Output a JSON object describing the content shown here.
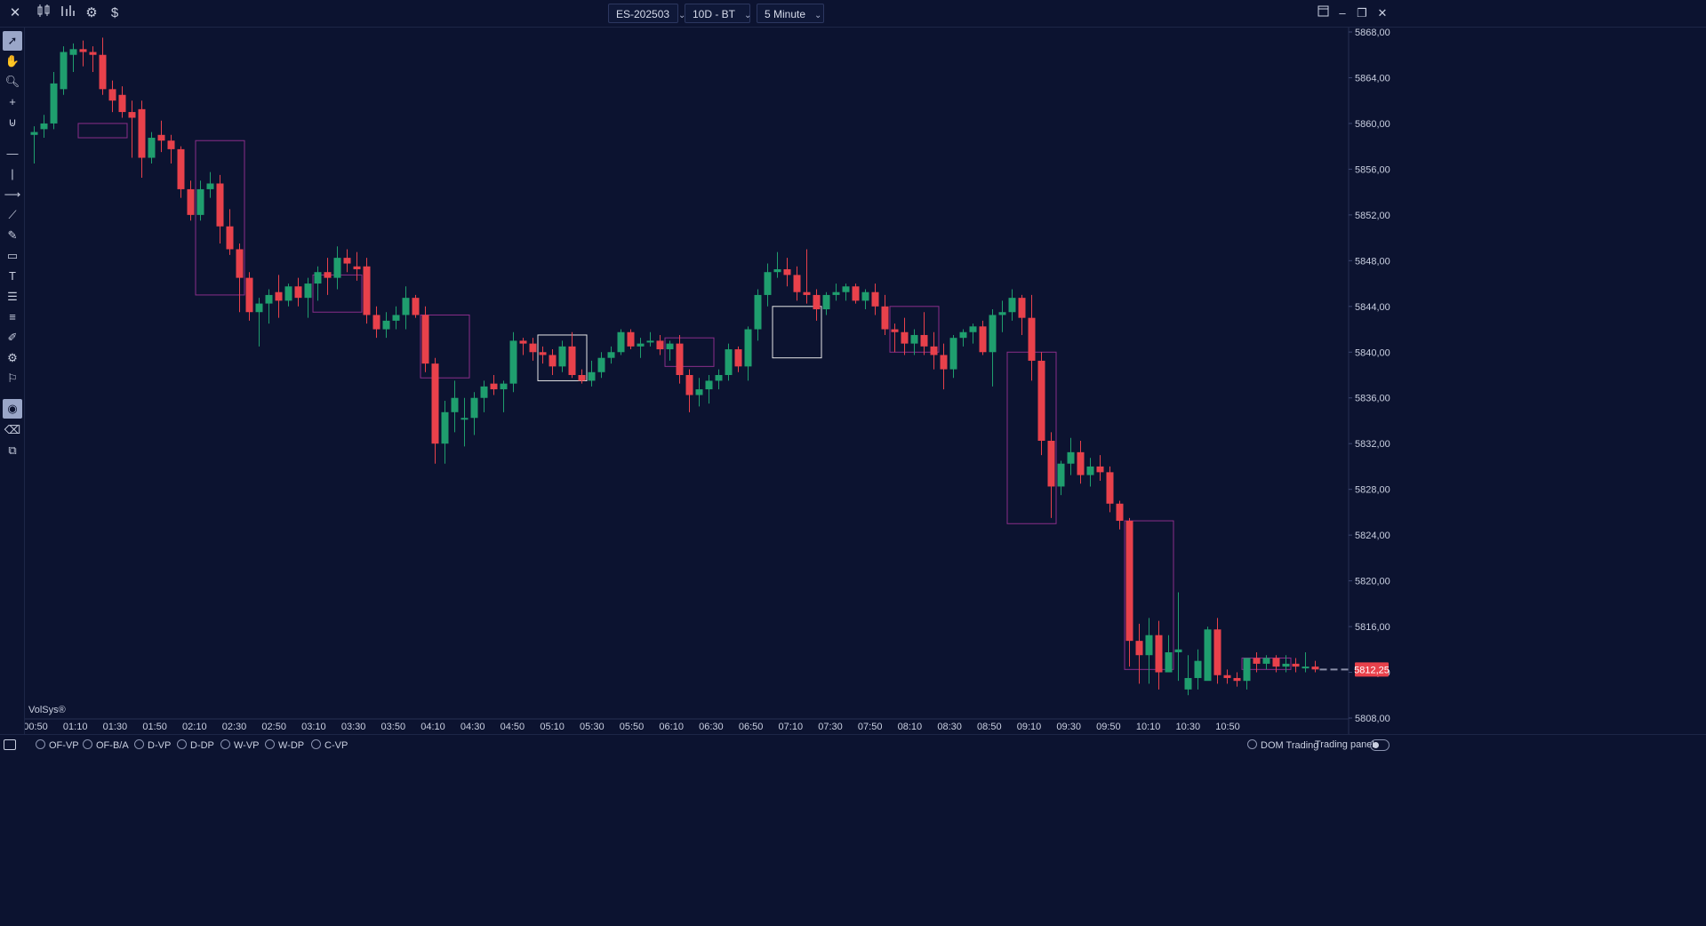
{
  "toolbar": {
    "symbol": "ES-202503",
    "range": "10D - BT",
    "interval": "5 Minute",
    "icons": [
      "close-icon",
      "candlestick-icon",
      "bar-chart-icon",
      "gear-icon",
      "dollar-icon"
    ]
  },
  "window_controls": [
    "layout-icon",
    "minimize-icon",
    "restore-icon",
    "close-icon"
  ],
  "left_tools": [
    "cursor-icon",
    "hand-icon",
    "zoom-icon",
    "crosshair-icon",
    "magnet-icon",
    "horizontal-line-icon",
    "vertical-line-icon",
    "ray-icon",
    "trend-line-icon",
    "ruler-icon",
    "rectangle-icon",
    "text-icon",
    "fib-icon",
    "list-icon",
    "pencil-icon",
    "settings-icon",
    "alert-icon",
    "eye-icon",
    "eraser-icon",
    "layers-icon"
  ],
  "watermark": "VolSys®",
  "bottom_bar": {
    "studies": [
      "OF-VP",
      "OF-B/A",
      "D-VP",
      "D-DP",
      "W-VP",
      "W-DP",
      "C-VP"
    ],
    "dom_trading": "DOM Trading",
    "trading_panel": "Trading panel"
  },
  "colors": {
    "background": "#0c1330",
    "up": "#1f9e6e",
    "down": "#e8414b",
    "box_magenta": "#8a2e8a",
    "box_white": "#e6e6e6",
    "price_tag": "#e8414b"
  },
  "chart_data": {
    "type": "candlestick",
    "symbol": "ES-202503",
    "interval": "5 Minute",
    "ylim": [
      5808,
      5868
    ],
    "y_ticks": [
      "5868,00",
      "5864,00",
      "5860,00",
      "5856,00",
      "5852,00",
      "5848,00",
      "5844,00",
      "5840,00",
      "5836,00",
      "5832,00",
      "5828,00",
      "5824,00",
      "5820,00",
      "5816,00",
      "5812,00",
      "5808,00"
    ],
    "x_ticks": [
      "00:50",
      "01:10",
      "01:30",
      "01:50",
      "02:10",
      "02:30",
      "02:50",
      "03:10",
      "03:30",
      "03:50",
      "04:10",
      "04:30",
      "04:50",
      "05:10",
      "05:30",
      "05:50",
      "06:10",
      "06:30",
      "06:50",
      "07:10",
      "07:30",
      "07:50",
      "08:10",
      "08:30",
      "08:50",
      "09:10",
      "09:30",
      "09:50",
      "10:10",
      "10:30",
      "10:50"
    ],
    "last_price": 5812.25,
    "last_price_label": "5812,25",
    "candles": [
      [
        5859.0,
        5859.75,
        5856.5,
        5859.25
      ],
      [
        5859.5,
        5860.75,
        5858.75,
        5860.0
      ],
      [
        5860.0,
        5864.5,
        5859.5,
        5863.5
      ],
      [
        5863.0,
        5866.75,
        5862.5,
        5866.25
      ],
      [
        5866.0,
        5867.0,
        5864.5,
        5866.5
      ],
      [
        5866.5,
        5867.25,
        5865.0,
        5866.25
      ],
      [
        5866.25,
        5866.75,
        5864.5,
        5866.0
      ],
      [
        5866.0,
        5867.5,
        5862.5,
        5863.0
      ],
      [
        5863.0,
        5863.75,
        5861.0,
        5862.0
      ],
      [
        5862.5,
        5863.25,
        5860.5,
        5861.0
      ],
      [
        5861.0,
        5862.0,
        5857.0,
        5860.5
      ],
      [
        5861.25,
        5862.0,
        5855.25,
        5857.0
      ],
      [
        5857.0,
        5859.25,
        5856.5,
        5858.75
      ],
      [
        5859.0,
        5860.25,
        5857.5,
        5858.5
      ],
      [
        5858.5,
        5859.0,
        5856.5,
        5857.75
      ],
      [
        5857.75,
        5858.0,
        5853.5,
        5854.25
      ],
      [
        5854.25,
        5855.0,
        5851.5,
        5852.0
      ],
      [
        5852.0,
        5855.0,
        5851.5,
        5854.25
      ],
      [
        5854.25,
        5855.75,
        5853.5,
        5854.75
      ],
      [
        5854.75,
        5855.5,
        5849.5,
        5851.0
      ],
      [
        5851.0,
        5852.5,
        5848.5,
        5849.0
      ],
      [
        5849.0,
        5849.5,
        5843.5,
        5846.5
      ],
      [
        5846.5,
        5847.0,
        5842.75,
        5843.5
      ],
      [
        5843.5,
        5844.75,
        5840.5,
        5844.25
      ],
      [
        5844.25,
        5845.5,
        5842.5,
        5845.0
      ],
      [
        5845.25,
        5846.75,
        5843.0,
        5844.5
      ],
      [
        5844.5,
        5846.0,
        5844.0,
        5845.75
      ],
      [
        5845.75,
        5846.5,
        5844.0,
        5844.75
      ],
      [
        5844.75,
        5846.5,
        5843.0,
        5846.0
      ],
      [
        5846.0,
        5847.5,
        5844.5,
        5847.0
      ],
      [
        5847.0,
        5848.25,
        5845.0,
        5846.5
      ],
      [
        5846.5,
        5849.25,
        5845.5,
        5848.25
      ],
      [
        5848.25,
        5849.0,
        5847.0,
        5847.75
      ],
      [
        5847.5,
        5848.75,
        5846.25,
        5847.25
      ],
      [
        5847.5,
        5848.25,
        5842.5,
        5843.25
      ],
      [
        5843.25,
        5844.0,
        5841.25,
        5842.0
      ],
      [
        5842.0,
        5843.5,
        5841.25,
        5842.75
      ],
      [
        5842.75,
        5844.0,
        5842.0,
        5843.25
      ],
      [
        5843.25,
        5845.75,
        5842.0,
        5844.75
      ],
      [
        5844.75,
        5845.0,
        5843.0,
        5843.25
      ],
      [
        5843.25,
        5844.0,
        5838.25,
        5839.0
      ],
      [
        5839.0,
        5839.5,
        5830.25,
        5832.0
      ],
      [
        5832.0,
        5835.75,
        5830.25,
        5834.75
      ],
      [
        5834.75,
        5837.5,
        5833.0,
        5836.0
      ],
      [
        5834.25,
        5836.0,
        5831.75,
        5834.25
      ],
      [
        5834.25,
        5836.5,
        5832.75,
        5836.0
      ],
      [
        5836.0,
        5837.5,
        5834.75,
        5837.0
      ],
      [
        5837.25,
        5838.0,
        5836.25,
        5836.75
      ],
      [
        5836.75,
        5837.5,
        5834.75,
        5837.25
      ],
      [
        5837.25,
        5841.75,
        5836.5,
        5841.0
      ],
      [
        5841.0,
        5841.25,
        5839.75,
        5840.75
      ],
      [
        5840.75,
        5841.25,
        5839.25,
        5840.0
      ],
      [
        5840.0,
        5840.5,
        5839.0,
        5839.75
      ],
      [
        5839.75,
        5840.25,
        5838.0,
        5838.75
      ],
      [
        5838.75,
        5841.0,
        5838.25,
        5840.5
      ],
      [
        5840.5,
        5841.75,
        5837.75,
        5838.0
      ],
      [
        5838.0,
        5838.5,
        5837.25,
        5837.5
      ],
      [
        5837.5,
        5839.25,
        5837.0,
        5838.25
      ],
      [
        5838.25,
        5840.0,
        5837.75,
        5839.5
      ],
      [
        5839.5,
        5840.5,
        5839.0,
        5840.0
      ],
      [
        5840.0,
        5842.0,
        5839.75,
        5841.75
      ],
      [
        5841.75,
        5842.0,
        5840.25,
        5840.5
      ],
      [
        5840.5,
        5841.25,
        5839.5,
        5840.75
      ],
      [
        5841.0,
        5841.75,
        5840.5,
        5841.0
      ],
      [
        5841.0,
        5841.5,
        5839.75,
        5840.25
      ],
      [
        5840.25,
        5841.0,
        5839.25,
        5840.75
      ],
      [
        5840.75,
        5841.5,
        5837.25,
        5838.0
      ],
      [
        5838.0,
        5838.5,
        5834.75,
        5836.25
      ],
      [
        5836.25,
        5837.75,
        5835.25,
        5836.75
      ],
      [
        5836.75,
        5838.0,
        5835.5,
        5837.5
      ],
      [
        5837.5,
        5838.5,
        5836.75,
        5838.0
      ],
      [
        5838.0,
        5840.75,
        5837.5,
        5840.25
      ],
      [
        5840.25,
        5840.5,
        5838.25,
        5838.75
      ],
      [
        5838.75,
        5842.25,
        5837.5,
        5842.0
      ],
      [
        5842.0,
        5845.5,
        5841.0,
        5845.0
      ],
      [
        5845.0,
        5847.75,
        5844.0,
        5847.0
      ],
      [
        5847.0,
        5848.75,
        5846.5,
        5847.25
      ],
      [
        5847.25,
        5848.25,
        5845.75,
        5846.75
      ],
      [
        5846.75,
        5847.5,
        5844.5,
        5845.25
      ],
      [
        5845.25,
        5849.0,
        5844.25,
        5845.0
      ],
      [
        5845.0,
        5845.5,
        5842.75,
        5843.75
      ],
      [
        5843.75,
        5845.25,
        5843.25,
        5845.0
      ],
      [
        5845.0,
        5846.0,
        5844.5,
        5845.25
      ],
      [
        5845.25,
        5846.0,
        5844.5,
        5845.75
      ],
      [
        5845.75,
        5846.0,
        5844.25,
        5844.5
      ],
      [
        5844.5,
        5845.5,
        5843.75,
        5845.25
      ],
      [
        5845.25,
        5846.0,
        5843.25,
        5844.0
      ],
      [
        5844.0,
        5845.0,
        5841.5,
        5842.0
      ],
      [
        5842.0,
        5842.5,
        5840.0,
        5841.75
      ],
      [
        5841.75,
        5843.0,
        5839.75,
        5840.75
      ],
      [
        5840.75,
        5842.0,
        5839.75,
        5841.5
      ],
      [
        5841.5,
        5843.5,
        5839.75,
        5840.5
      ],
      [
        5840.5,
        5841.75,
        5838.5,
        5839.75
      ],
      [
        5839.75,
        5840.75,
        5836.75,
        5838.5
      ],
      [
        5838.5,
        5841.5,
        5837.75,
        5841.25
      ],
      [
        5841.25,
        5842.0,
        5840.5,
        5841.75
      ],
      [
        5841.75,
        5842.5,
        5840.75,
        5842.25
      ],
      [
        5842.25,
        5842.75,
        5839.75,
        5840.0
      ],
      [
        5840.0,
        5843.75,
        5837.0,
        5843.25
      ],
      [
        5843.25,
        5844.5,
        5841.75,
        5843.5
      ],
      [
        5843.5,
        5845.5,
        5842.75,
        5844.75
      ],
      [
        5844.75,
        5845.0,
        5841.5,
        5843.0
      ],
      [
        5843.0,
        5845.0,
        5837.5,
        5839.25
      ],
      [
        5839.25,
        5840.0,
        5831.0,
        5832.25
      ],
      [
        5832.25,
        5833.0,
        5825.5,
        5828.25
      ],
      [
        5828.25,
        5830.5,
        5827.5,
        5830.25
      ],
      [
        5830.25,
        5832.5,
        5829.25,
        5831.25
      ],
      [
        5831.25,
        5832.25,
        5828.5,
        5829.25
      ],
      [
        5829.25,
        5830.75,
        5828.25,
        5830.0
      ],
      [
        5830.0,
        5831.0,
        5828.75,
        5829.5
      ],
      [
        5829.5,
        5830.0,
        5826.0,
        5826.75
      ],
      [
        5826.75,
        5827.0,
        5824.5,
        5825.25
      ],
      [
        5825.25,
        5825.5,
        5812.5,
        5814.75
      ],
      [
        5814.75,
        5816.25,
        5811.0,
        5813.5
      ],
      [
        5813.5,
        5816.75,
        5811.0,
        5815.25
      ],
      [
        5815.25,
        5816.5,
        5810.5,
        5812.0
      ],
      [
        5812.0,
        5815.25,
        5812.0,
        5813.75
      ],
      [
        5813.75,
        5819.0,
        5811.25,
        5814.0
      ],
      [
        5810.5,
        5813.5,
        5810.0,
        5811.5
      ],
      [
        5811.5,
        5814.0,
        5810.5,
        5813.0
      ],
      [
        5811.25,
        5816.0,
        5811.5,
        5815.75
      ],
      [
        5815.75,
        5816.75,
        5811.0,
        5811.75
      ],
      [
        5811.75,
        5812.25,
        5811.0,
        5811.5
      ],
      [
        5811.5,
        5812.0,
        5810.75,
        5811.25
      ],
      [
        5811.25,
        5812.75,
        5810.5,
        5813.25
      ],
      [
        5813.25,
        5813.75,
        5812.0,
        5812.75
      ],
      [
        5812.75,
        5813.5,
        5812.25,
        5813.25
      ],
      [
        5813.25,
        5813.5,
        5812.0,
        5812.5
      ],
      [
        5812.5,
        5813.5,
        5812.0,
        5812.75
      ],
      [
        5812.75,
        5813.25,
        5812.0,
        5812.5
      ],
      [
        5812.5,
        5813.75,
        5812.0,
        5812.5
      ],
      [
        5812.5,
        5813.0,
        5812.0,
        5812.25
      ]
    ],
    "boxes": [
      {
        "from": 5,
        "to": 9,
        "high": 5860.0,
        "low": 5858.75,
        "color": "magenta"
      },
      {
        "from": 17,
        "to": 21,
        "high": 5858.5,
        "low": 5845.0,
        "color": "magenta"
      },
      {
        "from": 29,
        "to": 33,
        "high": 5846.75,
        "low": 5843.5,
        "color": "magenta"
      },
      {
        "from": 40,
        "to": 44,
        "high": 5843.25,
        "low": 5837.75,
        "color": "magenta"
      },
      {
        "from": 52,
        "to": 56,
        "high": 5841.5,
        "low": 5837.5,
        "color": "white"
      },
      {
        "from": 65,
        "to": 69,
        "high": 5841.25,
        "low": 5838.75,
        "color": "magenta"
      },
      {
        "from": 76,
        "to": 80,
        "high": 5844.0,
        "low": 5839.5,
        "color": "white"
      },
      {
        "from": 88,
        "to": 92,
        "high": 5844.0,
        "low": 5840.0,
        "color": "magenta"
      },
      {
        "from": 100,
        "to": 104,
        "high": 5840.0,
        "low": 5825.0,
        "color": "magenta"
      },
      {
        "from": 112,
        "to": 116,
        "high": 5825.25,
        "low": 5812.25,
        "color": "magenta"
      },
      {
        "from": 124,
        "to": 128,
        "high": 5813.25,
        "low": 5812.25,
        "color": "magenta"
      }
    ]
  }
}
